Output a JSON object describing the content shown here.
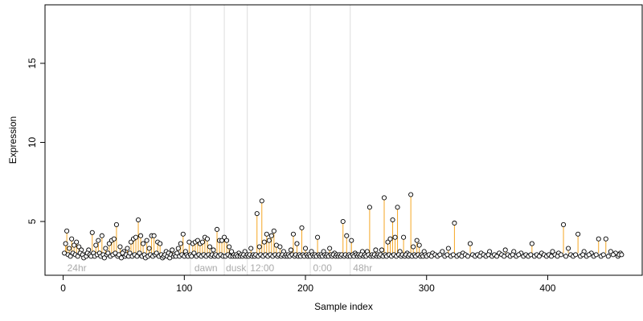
{
  "chart_data": {
    "type": "scatter",
    "title": "",
    "xlabel": "Sample index",
    "ylabel": "Expression",
    "xlim": [
      -15,
      478
    ],
    "ylim": [
      1.6,
      18.7
    ],
    "xticks": [
      0,
      100,
      200,
      300,
      400
    ],
    "yticks": [
      5,
      10,
      15
    ],
    "baseline": 3.0,
    "colors": {
      "above": "#f5a623",
      "below": "#7fa8d8",
      "divider": "#dddddd",
      "point_fill": "#ffffff",
      "point_stroke": "#000000"
    },
    "dividers": [
      105,
      133,
      152,
      204,
      237
    ],
    "regions": [
      {
        "label": "24hr",
        "x": 2
      },
      {
        "label": "dawn",
        "x": 107
      },
      {
        "label": "dusk",
        "x": 133
      },
      {
        "label": "12:00",
        "x": 153
      },
      {
        "label": "0:00",
        "x": 205
      },
      {
        "label": "48hr",
        "x": 238
      }
    ],
    "points": [
      [
        2,
        3.6
      ],
      [
        3,
        4.4
      ],
      [
        5,
        3.3
      ],
      [
        7,
        3.9
      ],
      [
        9,
        3.5
      ],
      [
        11,
        3.7
      ],
      [
        13,
        3.4
      ],
      [
        15,
        3.2
      ],
      [
        18,
        2.9
      ],
      [
        21,
        3.2
      ],
      [
        24,
        4.3
      ],
      [
        27,
        3.5
      ],
      [
        29,
        3.8
      ],
      [
        32,
        4.1
      ],
      [
        35,
        3.3
      ],
      [
        38,
        3.6
      ],
      [
        40,
        3.8
      ],
      [
        42,
        3.9
      ],
      [
        44,
        4.8
      ],
      [
        47,
        3.4
      ],
      [
        50,
        3.1
      ],
      [
        53,
        3.3
      ],
      [
        56,
        3.7
      ],
      [
        58,
        3.9
      ],
      [
        60,
        4.0
      ],
      [
        62,
        5.1
      ],
      [
        64,
        4.1
      ],
      [
        66,
        3.6
      ],
      [
        69,
        3.8
      ],
      [
        71,
        3.3
      ],
      [
        73,
        4.1
      ],
      [
        75,
        4.1
      ],
      [
        78,
        3.7
      ],
      [
        80,
        3.6
      ],
      [
        85,
        3.1
      ],
      [
        90,
        3.2
      ],
      [
        95,
        3.3
      ],
      [
        97,
        3.6
      ],
      [
        99,
        4.2
      ],
      [
        101,
        3.1
      ],
      [
        104,
        3.7
      ],
      [
        107,
        3.6
      ],
      [
        109,
        3.7
      ],
      [
        111,
        3.8
      ],
      [
        113,
        3.6
      ],
      [
        115,
        3.7
      ],
      [
        117,
        4.0
      ],
      [
        119,
        3.9
      ],
      [
        121,
        3.4
      ],
      [
        124,
        3.2
      ],
      [
        127,
        4.5
      ],
      [
        129,
        3.8
      ],
      [
        131,
        3.8
      ],
      [
        133,
        4.0
      ],
      [
        135,
        3.8
      ],
      [
        137,
        3.4
      ],
      [
        139,
        3.1
      ],
      [
        145,
        3.0
      ],
      [
        150,
        3.1
      ],
      [
        155,
        3.3
      ],
      [
        160,
        5.5
      ],
      [
        162,
        3.4
      ],
      [
        164,
        6.3
      ],
      [
        166,
        3.7
      ],
      [
        168,
        4.2
      ],
      [
        170,
        3.8
      ],
      [
        172,
        4.1
      ],
      [
        174,
        4.4
      ],
      [
        176,
        3.5
      ],
      [
        179,
        3.4
      ],
      [
        182,
        3.1
      ],
      [
        188,
        3.2
      ],
      [
        190,
        4.2
      ],
      [
        193,
        3.6
      ],
      [
        197,
        4.6
      ],
      [
        200,
        3.3
      ],
      [
        205,
        3.1
      ],
      [
        210,
        4.0
      ],
      [
        215,
        3.1
      ],
      [
        220,
        3.3
      ],
      [
        224,
        3.0
      ],
      [
        231,
        5.0
      ],
      [
        234,
        4.1
      ],
      [
        238,
        3.8
      ],
      [
        241,
        3.0
      ],
      [
        247,
        3.1
      ],
      [
        251,
        3.1
      ],
      [
        253,
        5.9
      ],
      [
        258,
        3.2
      ],
      [
        263,
        3.2
      ],
      [
        265,
        6.5
      ],
      [
        268,
        3.7
      ],
      [
        270,
        3.9
      ],
      [
        272,
        5.1
      ],
      [
        274,
        4.0
      ],
      [
        276,
        5.9
      ],
      [
        278,
        3.1
      ],
      [
        281,
        4.0
      ],
      [
        284,
        3.0
      ],
      [
        287,
        6.7
      ],
      [
        289,
        3.4
      ],
      [
        292,
        3.8
      ],
      [
        294,
        3.5
      ],
      [
        298,
        3.1
      ],
      [
        305,
        3.0
      ],
      [
        313,
        3.1
      ],
      [
        318,
        3.3
      ],
      [
        323,
        4.9
      ],
      [
        330,
        3.0
      ],
      [
        336,
        3.6
      ],
      [
        345,
        3.0
      ],
      [
        352,
        3.1
      ],
      [
        360,
        3.0
      ],
      [
        365,
        3.2
      ],
      [
        372,
        3.1
      ],
      [
        378,
        3.0
      ],
      [
        387,
        3.6
      ],
      [
        395,
        3.0
      ],
      [
        404,
        3.1
      ],
      [
        409,
        3.0
      ],
      [
        413,
        4.8
      ],
      [
        417,
        3.3
      ],
      [
        425,
        4.2
      ],
      [
        430,
        3.1
      ],
      [
        436,
        3.0
      ],
      [
        442,
        3.9
      ],
      [
        448,
        3.9
      ],
      [
        452,
        3.1
      ],
      [
        456,
        3.0
      ],
      [
        460,
        3.0
      ],
      [
        1,
        3.0
      ],
      [
        4,
        2.9
      ],
      [
        6,
        2.8
      ],
      [
        8,
        3.0
      ],
      [
        10,
        2.9
      ],
      [
        12,
        2.8
      ],
      [
        14,
        3.0
      ],
      [
        16,
        2.9
      ],
      [
        17,
        2.7
      ],
      [
        19,
        2.8
      ],
      [
        20,
        3.0
      ],
      [
        22,
        2.9
      ],
      [
        23,
        2.8
      ],
      [
        25,
        3.0
      ],
      [
        26,
        2.8
      ],
      [
        28,
        2.9
      ],
      [
        30,
        3.0
      ],
      [
        31,
        2.8
      ],
      [
        33,
        2.9
      ],
      [
        34,
        2.7
      ],
      [
        36,
        2.9
      ],
      [
        37,
        3.0
      ],
      [
        39,
        2.8
      ],
      [
        41,
        2.9
      ],
      [
        43,
        3.0
      ],
      [
        45,
        2.8
      ],
      [
        46,
        2.9
      ],
      [
        48,
        2.7
      ],
      [
        49,
        3.0
      ],
      [
        51,
        2.8
      ],
      [
        52,
        2.9
      ],
      [
        54,
        2.8
      ],
      [
        55,
        3.0
      ],
      [
        57,
        2.8
      ],
      [
        59,
        2.9
      ],
      [
        61,
        2.8
      ],
      [
        63,
        3.0
      ],
      [
        65,
        2.8
      ],
      [
        67,
        2.9
      ],
      [
        68,
        2.7
      ],
      [
        70,
        2.8
      ],
      [
        72,
        2.9
      ],
      [
        74,
        2.8
      ],
      [
        76,
        2.9
      ],
      [
        77,
        3.0
      ],
      [
        79,
        2.8
      ],
      [
        81,
        2.9
      ],
      [
        82,
        2.7
      ],
      [
        83,
        2.8
      ],
      [
        84,
        2.9
      ],
      [
        86,
        2.8
      ],
      [
        87,
        3.0
      ],
      [
        88,
        2.7
      ],
      [
        89,
        2.9
      ],
      [
        91,
        2.8
      ],
      [
        92,
        2.9
      ],
      [
        93,
        2.8
      ],
      [
        94,
        3.0
      ],
      [
        96,
        2.8
      ],
      [
        98,
        2.9
      ],
      [
        100,
        2.8
      ],
      [
        102,
        2.9
      ],
      [
        103,
        2.8
      ],
      [
        105,
        2.9
      ],
      [
        106,
        2.8
      ],
      [
        108,
        3.0
      ],
      [
        110,
        2.8
      ],
      [
        112,
        2.9
      ],
      [
        114,
        2.8
      ],
      [
        116,
        2.9
      ],
      [
        118,
        2.8
      ],
      [
        120,
        2.9
      ],
      [
        122,
        2.8
      ],
      [
        123,
        2.9
      ],
      [
        125,
        2.8
      ],
      [
        126,
        2.9
      ],
      [
        128,
        2.8
      ],
      [
        130,
        2.9
      ],
      [
        132,
        2.8
      ],
      [
        134,
        2.8
      ],
      [
        136,
        2.9
      ],
      [
        138,
        2.8
      ],
      [
        140,
        2.8
      ],
      [
        141,
        2.9
      ],
      [
        142,
        2.8
      ],
      [
        143,
        2.9
      ],
      [
        144,
        2.8
      ],
      [
        146,
        2.8
      ],
      [
        147,
        2.9
      ],
      [
        148,
        2.8
      ],
      [
        149,
        2.9
      ],
      [
        151,
        2.8
      ],
      [
        152,
        2.9
      ],
      [
        153,
        2.8
      ],
      [
        154,
        2.9
      ],
      [
        156,
        2.8
      ],
      [
        157,
        2.9
      ],
      [
        158,
        2.8
      ],
      [
        159,
        2.9
      ],
      [
        161,
        2.8
      ],
      [
        163,
        2.9
      ],
      [
        165,
        2.8
      ],
      [
        167,
        2.9
      ],
      [
        169,
        2.8
      ],
      [
        171,
        2.9
      ],
      [
        173,
        2.8
      ],
      [
        175,
        2.9
      ],
      [
        177,
        2.8
      ],
      [
        178,
        2.9
      ],
      [
        180,
        2.8
      ],
      [
        181,
        2.9
      ],
      [
        183,
        2.8
      ],
      [
        184,
        2.9
      ],
      [
        185,
        2.8
      ],
      [
        186,
        2.9
      ],
      [
        187,
        2.8
      ],
      [
        189,
        2.9
      ],
      [
        191,
        2.8
      ],
      [
        192,
        2.9
      ],
      [
        194,
        2.8
      ],
      [
        195,
        2.9
      ],
      [
        196,
        2.8
      ],
      [
        198,
        2.9
      ],
      [
        199,
        2.8
      ],
      [
        201,
        2.9
      ],
      [
        202,
        2.8
      ],
      [
        203,
        2.9
      ],
      [
        204,
        2.8
      ],
      [
        206,
        2.9
      ],
      [
        207,
        2.8
      ],
      [
        208,
        2.9
      ],
      [
        209,
        2.8
      ],
      [
        211,
        2.9
      ],
      [
        212,
        2.8
      ],
      [
        213,
        2.9
      ],
      [
        214,
        2.8
      ],
      [
        216,
        2.9
      ],
      [
        217,
        2.8
      ],
      [
        218,
        2.9
      ],
      [
        219,
        2.8
      ],
      [
        221,
        2.9
      ],
      [
        222,
        2.8
      ],
      [
        223,
        2.9
      ],
      [
        225,
        2.8
      ],
      [
        226,
        2.9
      ],
      [
        227,
        2.8
      ],
      [
        228,
        2.9
      ],
      [
        229,
        2.8
      ],
      [
        230,
        2.9
      ],
      [
        232,
        2.8
      ],
      [
        233,
        2.9
      ],
      [
        235,
        2.8
      ],
      [
        236,
        2.9
      ],
      [
        237,
        2.8
      ],
      [
        239,
        2.9
      ],
      [
        240,
        2.8
      ],
      [
        242,
        2.9
      ],
      [
        243,
        2.8
      ],
      [
        244,
        2.9
      ],
      [
        245,
        2.8
      ],
      [
        246,
        2.9
      ],
      [
        248,
        2.8
      ],
      [
        249,
        2.9
      ],
      [
        250,
        2.8
      ],
      [
        252,
        2.9
      ],
      [
        254,
        2.8
      ],
      [
        255,
        2.9
      ],
      [
        256,
        2.8
      ],
      [
        257,
        2.9
      ],
      [
        259,
        2.8
      ],
      [
        260,
        2.9
      ],
      [
        261,
        2.8
      ],
      [
        262,
        2.9
      ],
      [
        264,
        2.8
      ],
      [
        266,
        2.9
      ],
      [
        267,
        2.8
      ],
      [
        269,
        2.9
      ],
      [
        271,
        2.8
      ],
      [
        273,
        2.9
      ],
      [
        275,
        2.8
      ],
      [
        277,
        2.9
      ],
      [
        279,
        2.8
      ],
      [
        280,
        2.9
      ],
      [
        282,
        2.8
      ],
      [
        283,
        2.9
      ],
      [
        285,
        2.8
      ],
      [
        286,
        2.9
      ],
      [
        288,
        2.8
      ],
      [
        290,
        2.9
      ],
      [
        291,
        2.8
      ],
      [
        293,
        2.9
      ],
      [
        295,
        2.8
      ],
      [
        296,
        2.9
      ],
      [
        297,
        2.8
      ],
      [
        299,
        2.9
      ],
      [
        300,
        2.8
      ],
      [
        302,
        2.9
      ],
      [
        304,
        2.8
      ],
      [
        307,
        2.9
      ],
      [
        309,
        2.8
      ],
      [
        311,
        2.9
      ],
      [
        315,
        2.8
      ],
      [
        317,
        2.9
      ],
      [
        320,
        2.8
      ],
      [
        322,
        2.9
      ],
      [
        325,
        2.8
      ],
      [
        327,
        2.9
      ],
      [
        329,
        2.8
      ],
      [
        332,
        2.9
      ],
      [
        334,
        2.8
      ],
      [
        338,
        2.9
      ],
      [
        340,
        2.8
      ],
      [
        342,
        2.9
      ],
      [
        344,
        2.8
      ],
      [
        347,
        2.9
      ],
      [
        349,
        2.8
      ],
      [
        351,
        2.9
      ],
      [
        354,
        2.8
      ],
      [
        356,
        2.9
      ],
      [
        358,
        2.8
      ],
      [
        362,
        2.9
      ],
      [
        364,
        2.8
      ],
      [
        367,
        2.9
      ],
      [
        369,
        2.8
      ],
      [
        371,
        2.9
      ],
      [
        374,
        2.8
      ],
      [
        376,
        2.9
      ],
      [
        380,
        2.8
      ],
      [
        382,
        2.9
      ],
      [
        384,
        2.8
      ],
      [
        386,
        2.9
      ],
      [
        389,
        2.8
      ],
      [
        391,
        2.9
      ],
      [
        393,
        2.8
      ],
      [
        397,
        2.9
      ],
      [
        399,
        2.8
      ],
      [
        401,
        2.9
      ],
      [
        403,
        2.8
      ],
      [
        406,
        2.9
      ],
      [
        408,
        2.8
      ],
      [
        411,
        2.9
      ],
      [
        415,
        2.8
      ],
      [
        419,
        2.9
      ],
      [
        421,
        2.8
      ],
      [
        423,
        2.9
      ],
      [
        427,
        2.8
      ],
      [
        429,
        2.9
      ],
      [
        432,
        2.8
      ],
      [
        434,
        2.9
      ],
      [
        438,
        2.8
      ],
      [
        440,
        2.9
      ],
      [
        444,
        2.8
      ],
      [
        446,
        2.9
      ],
      [
        450,
        2.8
      ],
      [
        454,
        2.9
      ],
      [
        458,
        2.8
      ],
      [
        459,
        2.9
      ],
      [
        461,
        2.9
      ]
    ]
  }
}
